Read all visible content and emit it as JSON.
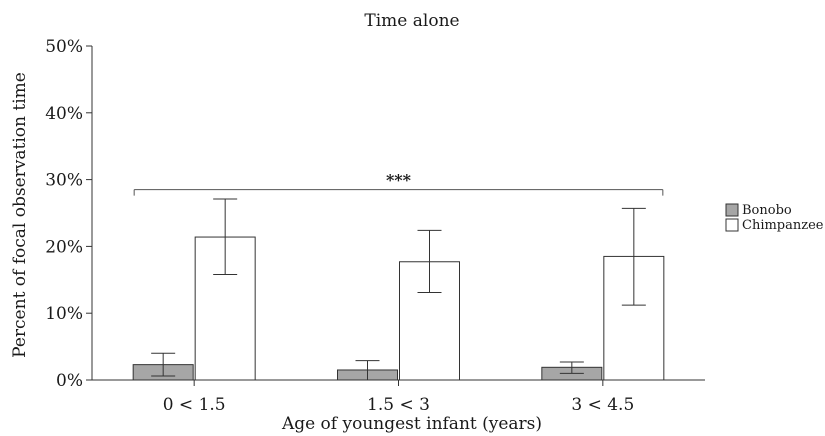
{
  "chart_data": {
    "type": "bar",
    "title": "Time alone",
    "xlabel": "Age of youngest infant (years)",
    "ylabel": "Percent of focal observation time",
    "categories": [
      "0 < 1.5",
      "1.5 < 3",
      "3 < 4.5"
    ],
    "ylim": [
      0,
      50
    ],
    "yticks": [
      "0%",
      "10%",
      "20%",
      "30%",
      "40%",
      "50%"
    ],
    "grid": false,
    "legend_position": "right",
    "series": [
      {
        "name": "Bonobo",
        "color": "#a6a6a6",
        "values": [
          2.3,
          1.5,
          1.9
        ],
        "err_low": [
          0.6,
          0.0,
          1.0
        ],
        "err_high": [
          4.0,
          2.9,
          2.7
        ]
      },
      {
        "name": "Chimpanzee",
        "color": "#ffffff",
        "values": [
          21.4,
          17.7,
          18.5
        ],
        "err_low": [
          15.8,
          13.1,
          11.2
        ],
        "err_high": [
          27.1,
          22.4,
          25.7
        ]
      }
    ],
    "significance": {
      "label": "***",
      "value": 28.5,
      "from_category": 0,
      "to_category": 2
    }
  }
}
